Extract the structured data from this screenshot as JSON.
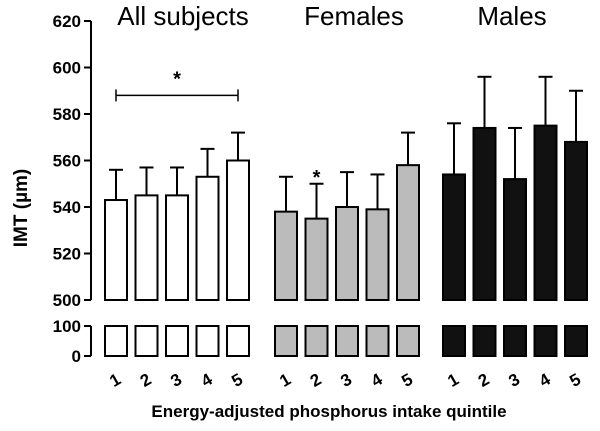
{
  "chart_data": {
    "type": "bar",
    "xlabel": "Energy-adjusted phosphorus intake quintile",
    "ylabel": "IMT (µm)",
    "y_axis_upper": {
      "ylim": [
        500,
        620
      ],
      "ticks": [
        "500",
        "520",
        "540",
        "560",
        "580",
        "600",
        "620"
      ]
    },
    "y_axis_lower": {
      "ylim": [
        0,
        100
      ],
      "ticks": [
        "0",
        "100"
      ]
    },
    "axis_break": true,
    "categories": [
      "1",
      "2",
      "3",
      "4",
      "5"
    ],
    "series": [
      {
        "name": "All subjects",
        "fill": "#ffffff",
        "values": [
          543,
          545,
          545,
          553,
          560
        ],
        "error_upper": [
          556,
          557,
          557,
          565,
          572
        ]
      },
      {
        "name": "Females",
        "fill": "#bbbbbb",
        "values": [
          538,
          535,
          540,
          539,
          558
        ],
        "error_upper": [
          553,
          550,
          555,
          554,
          572
        ]
      },
      {
        "name": "Males",
        "fill": "#111111",
        "values": [
          554,
          574,
          552,
          575,
          568
        ],
        "error_upper": [
          576,
          596,
          574,
          596,
          590
        ]
      }
    ],
    "annotations": [
      {
        "text": "*",
        "group": "All subjects",
        "type": "bracket",
        "from_category": "1",
        "to_category": "5",
        "y": 588
      },
      {
        "text": "*",
        "group": "Females",
        "type": "star",
        "category": "2",
        "y": 556
      }
    ]
  }
}
